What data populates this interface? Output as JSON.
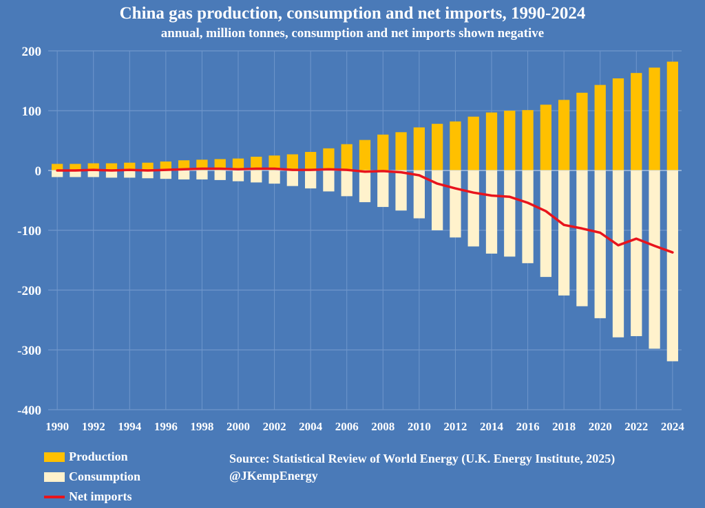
{
  "chart_data": {
    "type": "bar",
    "title": "China gas production, consumption and net imports, 1990-2024",
    "subtitle": "annual, million tonnes, consumption and net imports shown negative",
    "ylim": [
      -400,
      200
    ],
    "yticks": [
      200,
      100,
      0,
      -100,
      -200,
      -300,
      -400
    ],
    "ytick_labels": [
      "200",
      "100",
      "0",
      "-100",
      "-200",
      "-300",
      "-400"
    ],
    "categories": [
      "1990",
      "1991",
      "1992",
      "1993",
      "1994",
      "1995",
      "1996",
      "1997",
      "1998",
      "1999",
      "2000",
      "2001",
      "2002",
      "2003",
      "2004",
      "2005",
      "2006",
      "2007",
      "2008",
      "2009",
      "2010",
      "2011",
      "2012",
      "2013",
      "2014",
      "2015",
      "2016",
      "2017",
      "2018",
      "2019",
      "2020",
      "2021",
      "2022",
      "2023",
      "2024"
    ],
    "xtick_labels": [
      "1990",
      "1992",
      "1994",
      "1996",
      "1998",
      "2000",
      "2002",
      "2004",
      "2006",
      "2008",
      "2010",
      "2012",
      "2014",
      "2016",
      "2018",
      "2020",
      "2022",
      "2024"
    ],
    "series": [
      {
        "name": "Production",
        "type": "bar",
        "color": "#ffc000",
        "values": [
          11,
          11,
          12,
          12,
          13,
          13,
          15,
          17,
          18,
          19,
          20,
          23,
          25,
          27,
          31,
          37,
          44,
          51,
          60,
          64,
          72,
          78,
          82,
          90,
          97,
          100,
          101,
          110,
          118,
          130,
          143,
          154,
          163,
          172,
          182
        ]
      },
      {
        "name": "Consumption",
        "type": "bar",
        "color": "#fff2cc",
        "values": [
          -11,
          -11,
          -11,
          -12,
          -12,
          -13,
          -14,
          -15,
          -15,
          -16,
          -18,
          -20,
          -22,
          -26,
          -30,
          -35,
          -43,
          -53,
          -61,
          -67,
          -80,
          -100,
          -112,
          -127,
          -139,
          -144,
          -155,
          -178,
          -209,
          -227,
          -247,
          -279,
          -277,
          -298,
          -319
        ]
      },
      {
        "name": "Net imports",
        "type": "line",
        "color": "#e8141c",
        "values": [
          0,
          0,
          1,
          0,
          1,
          0,
          1,
          2,
          3,
          3,
          2,
          3,
          3,
          1,
          1,
          2,
          1,
          -2,
          -1,
          -3,
          -8,
          -22,
          -30,
          -37,
          -42,
          -44,
          -54,
          -68,
          -91,
          -97,
          -104,
          -125,
          -114,
          -126,
          -137
        ]
      }
    ],
    "grid": true,
    "legend": "bottom-left"
  },
  "legend": {
    "production": "Production",
    "consumption": "Consumption",
    "net_imports": "Net imports"
  },
  "source": {
    "line1": "Source: Statistical Review of World Energy (U.K. Energy Institute, 2025)",
    "line2": "@JKempEnergy"
  }
}
